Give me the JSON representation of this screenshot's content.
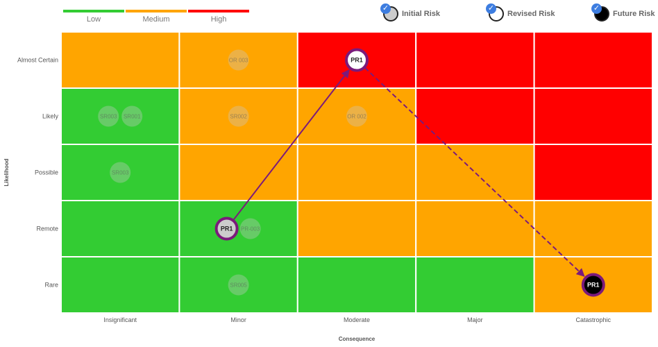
{
  "severity_legend": [
    {
      "label": "Low",
      "color": "#33cc33"
    },
    {
      "label": "Medium",
      "color": "#ffa500"
    },
    {
      "label": "High",
      "color": "#ff0000"
    }
  ],
  "risk_legend": [
    {
      "label": "Initial Risk",
      "fill": "#cccccc",
      "checked": true
    },
    {
      "label": "Revised Risk",
      "fill": "#ffffff",
      "checked": true
    },
    {
      "label": "Future Risk",
      "fill": "#000000",
      "checked": true
    }
  ],
  "chart_data": {
    "type": "heatmap",
    "xlabel": "Consequence",
    "ylabel": "Likelihood",
    "x_categories": [
      "Insignificant",
      "Minor",
      "Moderate",
      "Major",
      "Catastrophic"
    ],
    "y_categories": [
      "Almost Certain",
      "Likely",
      "Possible",
      "Remote",
      "Rare"
    ],
    "colors": {
      "low": "#33cc33",
      "medium": "#ffa500",
      "high": "#ff0000"
    },
    "matrix": [
      [
        "medium",
        "medium",
        "high",
        "high",
        "high"
      ],
      [
        "low",
        "medium",
        "medium",
        "high",
        "high"
      ],
      [
        "low",
        "medium",
        "medium",
        "medium",
        "high"
      ],
      [
        "low",
        "low",
        "medium",
        "medium",
        "medium"
      ],
      [
        "low",
        "low",
        "low",
        "low",
        "medium"
      ]
    ],
    "background_risks": [
      {
        "id": "SR003",
        "x": "Insignificant",
        "y": "Likely",
        "slot": 0,
        "slots": 2
      },
      {
        "id": "SR001",
        "x": "Insignificant",
        "y": "Likely",
        "slot": 1,
        "slots": 2
      },
      {
        "id": "OR 003",
        "x": "Minor",
        "y": "Almost Certain",
        "slot": 0,
        "slots": 1
      },
      {
        "id": "SR002",
        "x": "Minor",
        "y": "Likely",
        "slot": 0,
        "slots": 1
      },
      {
        "id": "OR 002",
        "x": "Moderate",
        "y": "Likely",
        "slot": 0,
        "slots": 1
      },
      {
        "id": "SR003",
        "x": "Insignificant",
        "y": "Possible",
        "slot": 0,
        "slots": 1
      },
      {
        "id": "PR-003",
        "x": "Minor",
        "y": "Remote",
        "slot": 1,
        "slots": 2
      },
      {
        "id": "SR005",
        "x": "Minor",
        "y": "Rare",
        "slot": 0,
        "slots": 1
      }
    ],
    "tracked_risk": {
      "id": "PR1",
      "stages": [
        {
          "stage": "Initial Risk",
          "x": "Minor",
          "y": "Remote",
          "slot": 0,
          "slots": 2,
          "fill": "#cccccc",
          "text": "#222222"
        },
        {
          "stage": "Revised Risk",
          "x": "Moderate",
          "y": "Almost Certain",
          "slot": 0,
          "slots": 1,
          "fill": "#ffffff",
          "text": "#222222"
        },
        {
          "stage": "Future Risk",
          "x": "Catastrophic",
          "y": "Rare",
          "slot": 0,
          "slots": 1,
          "fill": "#000000",
          "text": "#ffffff"
        }
      ],
      "arrow_color": "#7b1a7b"
    }
  }
}
